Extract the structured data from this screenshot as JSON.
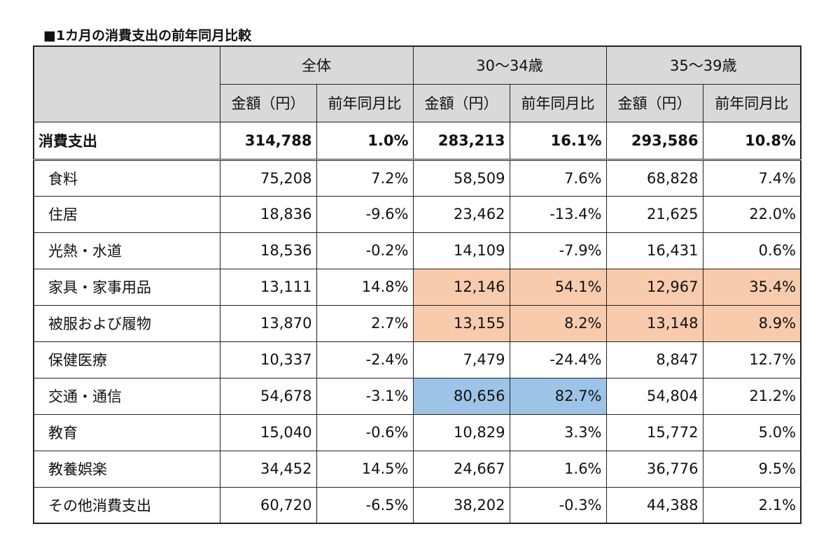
{
  "title": "■1カ月の消費支出の前年同月比較",
  "groups": [
    "全体",
    "30〜34歳",
    "35〜39歳"
  ],
  "subheaders": {
    "amount": "金額（円）",
    "yoy": "前年同月比"
  },
  "total": {
    "label": "消費支出",
    "values": [
      "314,788",
      "1.0%",
      "283,213",
      "16.1%",
      "293,586",
      "10.8%"
    ]
  },
  "rows": [
    {
      "label": "食料",
      "values": [
        "75,208",
        "7.2%",
        "58,509",
        "7.6%",
        "68,828",
        "7.4%"
      ]
    },
    {
      "label": "住居",
      "values": [
        "18,836",
        "-9.6%",
        "23,462",
        "-13.4%",
        "21,625",
        "22.0%"
      ]
    },
    {
      "label": "光熱・水道",
      "values": [
        "18,536",
        "-0.2%",
        "14,109",
        "-7.9%",
        "16,431",
        "0.6%"
      ]
    },
    {
      "label": "家具・家事用品",
      "values": [
        "13,111",
        "14.8%",
        "12,146",
        "54.1%",
        "12,967",
        "35.4%"
      ]
    },
    {
      "label": "被服および履物",
      "values": [
        "13,870",
        "2.7%",
        "13,155",
        "8.2%",
        "13,148",
        "8.9%"
      ]
    },
    {
      "label": "保健医療",
      "values": [
        "10,337",
        "-2.4%",
        "7,479",
        "-24.4%",
        "8,847",
        "12.7%"
      ]
    },
    {
      "label": "交通・通信",
      "values": [
        "54,678",
        "-3.1%",
        "80,656",
        "82.7%",
        "54,804",
        "21.2%"
      ]
    },
    {
      "label": "教育",
      "values": [
        "15,040",
        "-0.6%",
        "10,829",
        "3.3%",
        "15,772",
        "5.0%"
      ]
    },
    {
      "label": "教養娯楽",
      "values": [
        "34,452",
        "14.5%",
        "24,667",
        "1.6%",
        "36,776",
        "9.5%"
      ]
    },
    {
      "label": "その他消費支出",
      "values": [
        "60,720",
        "-6.5%",
        "38,202",
        "-0.3%",
        "44,388",
        "2.1%"
      ]
    }
  ],
  "colors": {
    "highlight_orange": "#f8cbad",
    "highlight_blue": "#9dc3e6",
    "header_gray": "#d9d9d9"
  }
}
